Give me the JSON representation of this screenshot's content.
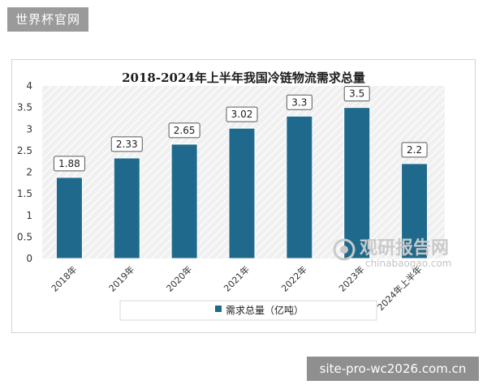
{
  "watermark_top": "世界杯官网",
  "watermark_bottom": "site-pro-wc2026.com.cn",
  "logo": {
    "name": "观研报告网",
    "domain": "chinabaogao.com"
  },
  "colors": {
    "bar": "#1f6a8c",
    "bar_edge": "#ffffff",
    "plot_bg": "#f0f0f0",
    "hatch": "#ffffff"
  },
  "chart_data": {
    "type": "bar",
    "title": "2018-2024年上半年我国冷链物流需求总量",
    "categories": [
      "2018年",
      "2019年",
      "2020年",
      "2021年",
      "2022年",
      "2023年",
      "2024年上半年"
    ],
    "series": [
      {
        "name": "需求总量（亿吨）",
        "values": [
          1.88,
          2.33,
          2.65,
          3.02,
          3.3,
          3.5,
          2.2
        ]
      }
    ],
    "data_labels": [
      "1.88",
      "2.33",
      "2.65",
      "3.02",
      "3.3",
      "3.5",
      "2.2"
    ],
    "ylim": [
      0,
      4
    ],
    "yticks": [
      "0",
      "0.5",
      "1",
      "1.5",
      "2",
      "2.5",
      "3",
      "3.5",
      "4"
    ],
    "legend_position": "bottom",
    "grid": false
  }
}
